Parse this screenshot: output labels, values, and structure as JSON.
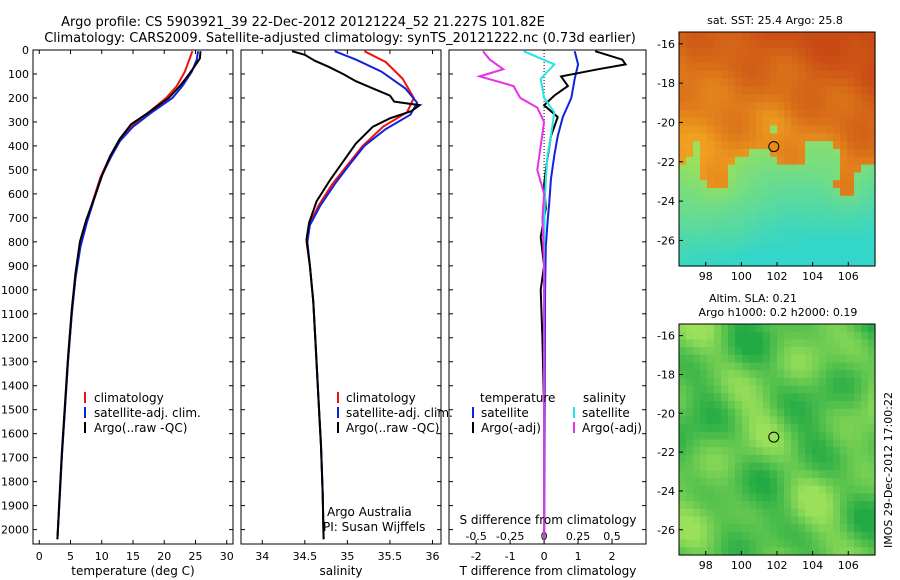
{
  "header": {
    "line1": "Argo profile: CS 5903921_39 22-Dec-2012 20121224_52 21.227S 101.82E",
    "line2": "Climatology: CARS2009. Satellite-adjusted climatology: synTS_20121222.nc (0.73d earlier)"
  },
  "side_note": "IMOS 29-Dec-2012 17:00:22",
  "colors": {
    "climatology": "#ee1111",
    "satellite": "#1122dd",
    "argo": "#000000",
    "salinity_satellite": "#22e6e6",
    "salinity_argo": "#e632e6",
    "warm_dark": "#c84a14",
    "warm_mid": "#f0a020",
    "green_dark": "#22aa44",
    "green_light": "#9ae05a",
    "cyan": "#33d6c8"
  },
  "chart_data": [
    {
      "type": "line",
      "xlabel": "temperature (deg C)",
      "ylim": [
        2060,
        0
      ],
      "xlim": [
        -1,
        31
      ],
      "xticks": [
        "0",
        "5",
        "10",
        "15",
        "20",
        "25",
        "30"
      ],
      "yticks": [
        "0",
        "100",
        "200",
        "300",
        "400",
        "500",
        "600",
        "700",
        "800",
        "900",
        "1000",
        "1100",
        "1200",
        "1300",
        "1400",
        "1500",
        "1600",
        "1700",
        "1800",
        "1900",
        "2000"
      ],
      "legend": [
        "climatology",
        "satellite-adj. clim.",
        "Argo(..raw -QC)"
      ],
      "series": [
        {
          "name": "climatology",
          "points": [
            [
              24.5,
              5
            ],
            [
              24.0,
              40
            ],
            [
              23.3,
              90
            ],
            [
              22.0,
              150
            ],
            [
              20.3,
              200
            ],
            [
              17.5,
              260
            ],
            [
              14.6,
              320
            ],
            [
              12.7,
              380
            ],
            [
              11.2,
              450
            ],
            [
              9.8,
              530
            ],
            [
              8.7,
              620
            ],
            [
              7.5,
              720
            ],
            [
              6.5,
              820
            ],
            [
              5.8,
              950
            ],
            [
              5.2,
              1100
            ],
            [
              4.6,
              1300
            ],
            [
              4.1,
              1500
            ],
            [
              3.6,
              1700
            ],
            [
              3.2,
              1900
            ],
            [
              2.9,
              2040
            ]
          ]
        },
        {
          "name": "satellite-adj. clim.",
          "points": [
            [
              25.4,
              5
            ],
            [
              25.2,
              40
            ],
            [
              24.4,
              90
            ],
            [
              22.9,
              150
            ],
            [
              21.3,
              200
            ],
            [
              18.0,
              260
            ],
            [
              15.0,
              320
            ],
            [
              12.9,
              380
            ],
            [
              11.4,
              450
            ],
            [
              9.9,
              530
            ],
            [
              8.8,
              620
            ],
            [
              7.6,
              720
            ],
            [
              6.6,
              820
            ],
            [
              5.8,
              950
            ],
            [
              5.2,
              1100
            ],
            [
              4.6,
              1300
            ],
            [
              4.1,
              1500
            ],
            [
              3.6,
              1700
            ],
            [
              3.2,
              1900
            ],
            [
              2.9,
              2040
            ]
          ]
        },
        {
          "name": "Argo(..raw -QC)",
          "points": [
            [
              25.8,
              5
            ],
            [
              25.7,
              35
            ],
            [
              24.8,
              70
            ],
            [
              23.7,
              110
            ],
            [
              22.5,
              150
            ],
            [
              20.7,
              200
            ],
            [
              17.8,
              255
            ],
            [
              14.7,
              310
            ],
            [
              12.9,
              370
            ],
            [
              11.4,
              440
            ],
            [
              10.1,
              520
            ],
            [
              8.9,
              610
            ],
            [
              7.5,
              710
            ],
            [
              6.5,
              800
            ],
            [
              5.8,
              930
            ],
            [
              5.2,
              1080
            ],
            [
              4.6,
              1280
            ],
            [
              4.1,
              1480
            ],
            [
              3.6,
              1680
            ],
            [
              3.2,
              1880
            ],
            [
              2.9,
              2040
            ]
          ]
        }
      ]
    },
    {
      "type": "line",
      "xlabel": "salinity",
      "ylim": [
        2060,
        0
      ],
      "xlim": [
        33.75,
        36.1
      ],
      "xticks": [
        "34",
        "34.5",
        "35",
        "35.5",
        "36"
      ],
      "legend": [
        "climatology",
        "satellite-adj. clim.",
        "Argo(..raw -QC)"
      ],
      "annotation": [
        "Argo Australia",
        "PI: Susan Wijffels"
      ],
      "series": [
        {
          "name": "climatology",
          "points": [
            [
              35.2,
              5
            ],
            [
              35.45,
              50
            ],
            [
              35.65,
              120
            ],
            [
              35.78,
              200
            ],
            [
              35.7,
              260
            ],
            [
              35.42,
              320
            ],
            [
              35.18,
              400
            ],
            [
              35.0,
              480
            ],
            [
              34.82,
              560
            ],
            [
              34.66,
              650
            ],
            [
              34.55,
              730
            ],
            [
              34.52,
              800
            ],
            [
              34.56,
              900
            ],
            [
              34.6,
              1050
            ],
            [
              34.63,
              1250
            ],
            [
              34.66,
              1450
            ],
            [
              34.69,
              1650
            ],
            [
              34.71,
              1850
            ],
            [
              34.72,
              2040
            ]
          ]
        },
        {
          "name": "satellite-adj. clim.",
          "points": [
            [
              34.85,
              5
            ],
            [
              35.1,
              40
            ],
            [
              35.4,
              90
            ],
            [
              35.68,
              160
            ],
            [
              35.82,
              220
            ],
            [
              35.74,
              270
            ],
            [
              35.45,
              330
            ],
            [
              35.2,
              400
            ],
            [
              35.02,
              480
            ],
            [
              34.85,
              560
            ],
            [
              34.68,
              650
            ],
            [
              34.56,
              730
            ],
            [
              34.53,
              800
            ],
            [
              34.56,
              900
            ],
            [
              34.6,
              1050
            ],
            [
              34.63,
              1250
            ],
            [
              34.66,
              1450
            ],
            [
              34.69,
              1650
            ],
            [
              34.71,
              1850
            ],
            [
              34.72,
              2040
            ]
          ]
        },
        {
          "name": "Argo(..raw -QC)",
          "points": [
            [
              34.35,
              5
            ],
            [
              34.5,
              20
            ],
            [
              34.62,
              45
            ],
            [
              34.78,
              70
            ],
            [
              34.95,
              100
            ],
            [
              35.1,
              130
            ],
            [
              35.3,
              160
            ],
            [
              35.5,
              190
            ],
            [
              35.55,
              215
            ],
            [
              35.85,
              230
            ],
            [
              35.75,
              255
            ],
            [
              35.5,
              285
            ],
            [
              35.3,
              320
            ],
            [
              35.1,
              390
            ],
            [
              34.96,
              460
            ],
            [
              34.8,
              540
            ],
            [
              34.64,
              630
            ],
            [
              34.55,
              720
            ],
            [
              34.52,
              790
            ],
            [
              34.56,
              900
            ],
            [
              34.6,
              1050
            ],
            [
              34.63,
              1250
            ],
            [
              34.66,
              1450
            ],
            [
              34.69,
              1650
            ],
            [
              34.71,
              1850
            ],
            [
              34.72,
              2040
            ]
          ]
        }
      ]
    },
    {
      "type": "line",
      "xlabel": "T difference from climatology",
      "xlabel_top": "S difference from climatology",
      "ylim": [
        2060,
        0
      ],
      "xlim": [
        -2.8,
        3.0
      ],
      "xticks": [
        "-2",
        "-1",
        "0",
        "1",
        "2"
      ],
      "xticks_top": [
        "-0.5",
        "-0.25",
        "0",
        "0.25",
        "0.5"
      ],
      "legend_titles": [
        "temperature",
        "salinity"
      ],
      "legend": [
        "satellite",
        "Argo(-adj)",
        "satellite",
        "Argo(-adj)"
      ],
      "series": [
        {
          "name": "satellite",
          "group": "temperature",
          "points": [
            [
              0.9,
              5
            ],
            [
              1.0,
              60
            ],
            [
              0.9,
              120
            ],
            [
              0.8,
              200
            ],
            [
              0.55,
              280
            ],
            [
              0.4,
              360
            ],
            [
              0.3,
              440
            ],
            [
              0.2,
              540
            ],
            [
              0.15,
              640
            ],
            [
              0.1,
              720
            ],
            [
              0.05,
              820
            ],
            [
              0.03,
              1000
            ],
            [
              0.02,
              1400
            ],
            [
              0.0,
              2040
            ]
          ]
        },
        {
          "name": "Argo(-adj)",
          "group": "temperature",
          "points": [
            [
              1.5,
              5
            ],
            [
              2.3,
              40
            ],
            [
              2.4,
              60
            ],
            [
              1.6,
              80
            ],
            [
              0.5,
              110
            ],
            [
              0.7,
              150
            ],
            [
              0.3,
              190
            ],
            [
              0.0,
              230
            ],
            [
              0.4,
              280
            ],
            [
              0.2,
              360
            ],
            [
              0.1,
              450
            ],
            [
              0.0,
              560
            ],
            [
              0.05,
              660
            ],
            [
              -0.1,
              780
            ],
            [
              0.0,
              900
            ],
            [
              -0.1,
              1000
            ],
            [
              -0.05,
              1200
            ],
            [
              0.0,
              1500
            ],
            [
              0.0,
              2040
            ]
          ]
        },
        {
          "name": "satellite",
          "group": "salinity",
          "points": [
            [
              -0.6,
              5
            ],
            [
              0.3,
              60
            ],
            [
              -0.1,
              120
            ],
            [
              0.0,
              200
            ],
            [
              0.3,
              260
            ],
            [
              0.2,
              360
            ],
            [
              0.1,
              440
            ],
            [
              0.05,
              540
            ],
            [
              0.02,
              640
            ],
            [
              0.0,
              800
            ],
            [
              0.0,
              2040
            ]
          ]
        },
        {
          "name": "Argo(-adj)",
          "group": "salinity",
          "points": [
            [
              -1.8,
              5
            ],
            [
              -1.6,
              40
            ],
            [
              -1.2,
              80
            ],
            [
              -1.9,
              110
            ],
            [
              -0.9,
              150
            ],
            [
              -0.7,
              200
            ],
            [
              -0.2,
              240
            ],
            [
              0.0,
              300
            ],
            [
              -0.1,
              400
            ],
            [
              -0.2,
              500
            ],
            [
              0.0,
              600
            ],
            [
              -0.05,
              700
            ],
            [
              0.0,
              900
            ],
            [
              0.0,
              2040
            ]
          ]
        }
      ]
    },
    {
      "type": "heatmap",
      "title": "sat. SST: 25.4 Argo: 25.8",
      "xlim": [
        96.5,
        107.5
      ],
      "ylim": [
        -27.3,
        -15.4
      ],
      "xticks": [
        "98",
        "100",
        "102",
        "104",
        "106"
      ],
      "yticks": [
        "-16",
        "-18",
        "-20",
        "-22",
        "-24",
        "-26"
      ],
      "marker": {
        "lon": 101.82,
        "lat": -21.227
      }
    },
    {
      "type": "heatmap",
      "title_lines": [
        "Altim. SLA: 0.21",
        "Argo h1000: 0.2 h2000: 0.19"
      ],
      "xlim": [
        96.5,
        107.5
      ],
      "ylim": [
        -27.3,
        -15.4
      ],
      "xticks": [
        "98",
        "100",
        "102",
        "104",
        "106"
      ],
      "yticks": [
        "-16",
        "-18",
        "-20",
        "-22",
        "-24",
        "-26"
      ],
      "marker": {
        "lon": 101.82,
        "lat": -21.227
      }
    }
  ]
}
